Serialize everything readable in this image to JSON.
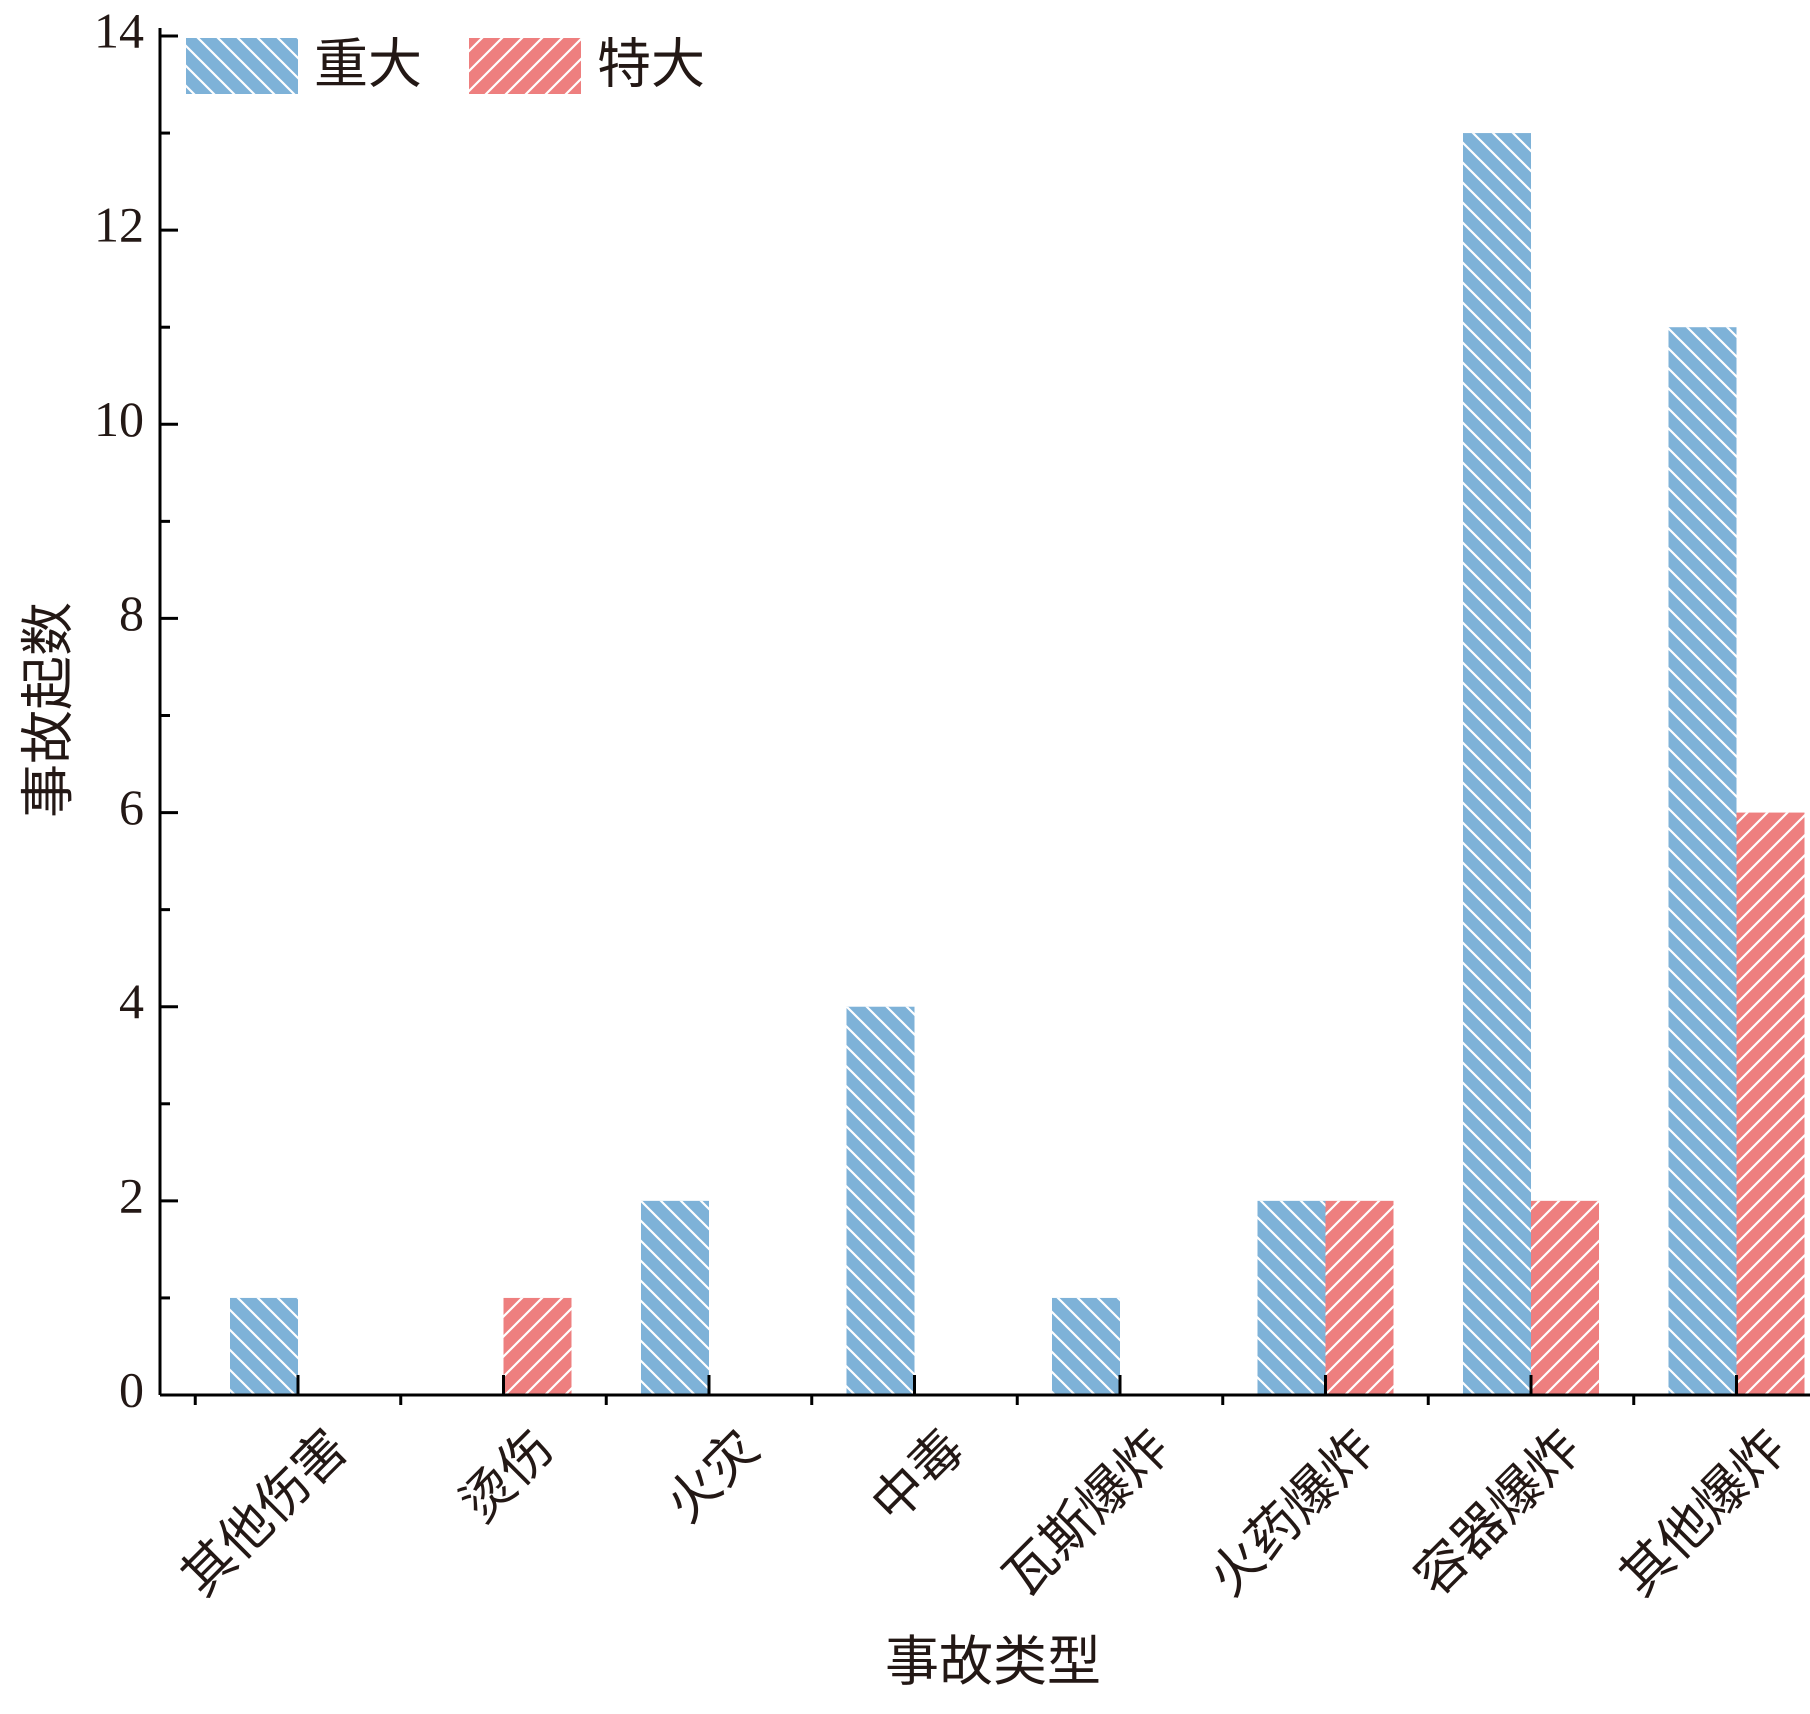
{
  "chart_data": {
    "type": "bar",
    "title": "",
    "xlabel": "事故类型",
    "ylabel": "事故起数",
    "ylim": [
      0,
      14
    ],
    "yticks": [
      0,
      2,
      4,
      6,
      8,
      10,
      12,
      14
    ],
    "categories": [
      "其他伤害",
      "烫伤",
      "火灾",
      "中毒",
      "瓦斯爆炸",
      "火药爆炸",
      "容器爆炸",
      "其他爆炸"
    ],
    "series": [
      {
        "name": "重大",
        "values": [
          1,
          0,
          2,
          4,
          1,
          2,
          13,
          11
        ],
        "color": "#7eb2d8",
        "hatch": "backslash"
      },
      {
        "name": "特大",
        "values": [
          0,
          1,
          0,
          0,
          0,
          2,
          2,
          6
        ],
        "color": "#ee7f7f",
        "hatch": "slash"
      }
    ],
    "legend_position": "top-left",
    "grid": false
  }
}
